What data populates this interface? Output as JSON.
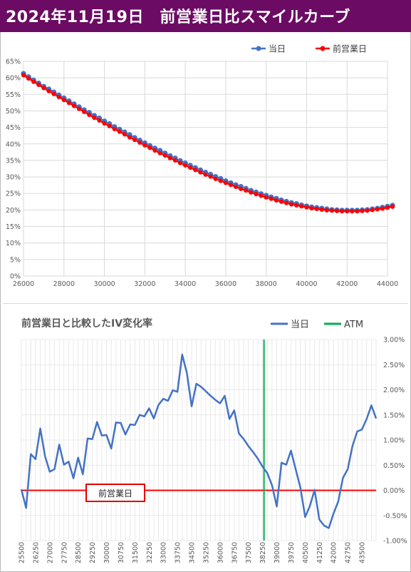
{
  "header": {
    "title": "2024年11月19日　前営業日比スマイルカーブ",
    "background": "#6b0b63"
  },
  "colors": {
    "today_top": "#4472c4",
    "prev_top": "#ff0000",
    "change_line": "#4472c4",
    "atm_line": "#00b050",
    "zero_line": "#ff0000",
    "box_border": "#e00000"
  },
  "chart_data": [
    {
      "type": "line",
      "title": "",
      "xlabel": "",
      "ylabel": "",
      "xlim": [
        26000,
        44000
      ],
      "ylim": [
        0,
        65
      ],
      "x_ticks": [
        "26000",
        "28000",
        "30000",
        "32000",
        "34000",
        "36000",
        "38000",
        "40000",
        "42000",
        "44000"
      ],
      "y_ticks": [
        "0%",
        "5%",
        "10%",
        "15%",
        "20%",
        "25%",
        "30%",
        "35%",
        "40%",
        "45%",
        "50%",
        "55%",
        "60%",
        "65%"
      ],
      "legend_position": "top-right",
      "grid": true,
      "series": [
        {
          "name": "当日",
          "color": "#4472c4"
        },
        {
          "name": "前営業日",
          "color": "#ff0000"
        }
      ],
      "x_start": 26000,
      "x_step": 250,
      "today": [
        61.3,
        60.3,
        59.3,
        58.4,
        57.4,
        56.6,
        55.7,
        54.8,
        53.9,
        53.0,
        52.1,
        51.2,
        50.3,
        49.5,
        48.6,
        47.8,
        46.9,
        46.1,
        45.2,
        44.4,
        43.6,
        42.8,
        41.9,
        41.1,
        40.3,
        39.5,
        38.7,
        38.0,
        37.2,
        36.4,
        35.7,
        34.9,
        34.2,
        33.5,
        32.8,
        32.1,
        31.4,
        30.8,
        30.1,
        29.5,
        28.8,
        28.2,
        27.6,
        27.1,
        26.5,
        25.9,
        25.4,
        24.9,
        24.4,
        23.9,
        23.5,
        23.0,
        22.6,
        22.2,
        21.9,
        21.5,
        21.2,
        20.9,
        20.7,
        20.5,
        20.3,
        20.1,
        20.0,
        19.9,
        19.9,
        19.9,
        19.9,
        20.0,
        20.1,
        20.3,
        20.5,
        20.8,
        21.1,
        21.4
      ],
      "prev": [
        60.8,
        59.8,
        58.8,
        57.9,
        56.9,
        56.0,
        55.1,
        54.2,
        53.3,
        52.4,
        51.5,
        50.6,
        49.7,
        48.8,
        47.9,
        47.1,
        46.2,
        45.4,
        44.5,
        43.7,
        42.9,
        42.0,
        41.2,
        40.4,
        39.6,
        38.8,
        38.0,
        37.2,
        36.5,
        35.7,
        35.0,
        34.2,
        33.5,
        32.8,
        32.1,
        31.4,
        30.7,
        30.1,
        29.4,
        28.8,
        28.2,
        27.6,
        27.0,
        26.4,
        25.9,
        25.3,
        24.8,
        24.3,
        23.8,
        23.4,
        22.9,
        22.5,
        22.1,
        21.7,
        21.4,
        21.1,
        20.8,
        20.5,
        20.3,
        20.1,
        19.9,
        19.8,
        19.7,
        19.6,
        19.6,
        19.6,
        19.6,
        19.7,
        19.8,
        20.0,
        20.2,
        20.4,
        20.7,
        21.0
      ]
    },
    {
      "type": "line",
      "title": "前営業日と比較したIV変化率",
      "xlabel": "",
      "ylabel": "",
      "ylim": [
        -1.0,
        3.0
      ],
      "y_ticks": [
        "3.00%",
        "2.50%",
        "2.00%",
        "1.50%",
        "1.00%",
        "0.50%",
        "0.00%",
        "-0.50%",
        "-1.00%"
      ],
      "x_ticks": [
        "25500",
        "26250",
        "27000",
        "27750",
        "28500",
        "29250",
        "30000",
        "30750",
        "31500",
        "32250",
        "33000",
        "33750",
        "34500",
        "35250",
        "36000",
        "36750",
        "37500",
        "38250",
        "39000",
        "39750",
        "40500",
        "41250",
        "42000",
        "42750",
        "43500"
      ],
      "legend_position": "top-right",
      "grid": true,
      "series": [
        {
          "name": "当日",
          "color": "#4472c4"
        },
        {
          "name": "ATM",
          "color": "#00b050"
        }
      ],
      "x_start": 25500,
      "x_step": 250,
      "change": [
        0.02,
        -0.35,
        0.72,
        0.62,
        1.23,
        0.68,
        0.37,
        0.42,
        0.91,
        0.51,
        0.57,
        0.24,
        0.65,
        0.32,
        1.03,
        1.02,
        1.36,
        1.09,
        1.1,
        0.83,
        1.35,
        1.34,
        1.11,
        1.31,
        1.3,
        1.5,
        1.47,
        1.63,
        1.43,
        1.7,
        1.82,
        1.78,
        1.99,
        1.96,
        2.7,
        2.33,
        1.67,
        2.12,
        2.06,
        1.97,
        1.88,
        1.8,
        1.73,
        1.88,
        1.42,
        1.59,
        1.13,
        1.02,
        0.88,
        0.76,
        0.63,
        0.47,
        0.34,
        0.1,
        -0.32,
        0.55,
        0.51,
        0.79,
        0.42,
        0.05,
        -0.53,
        -0.31,
        0.01,
        -0.58,
        -0.7,
        -0.75,
        -0.46,
        -0.22,
        0.25,
        0.42,
        0.88,
        1.17,
        1.21,
        1.42,
        1.69,
        1.43
      ],
      "atm_x": 38325,
      "zero_line_label": "前営業日"
    }
  ]
}
